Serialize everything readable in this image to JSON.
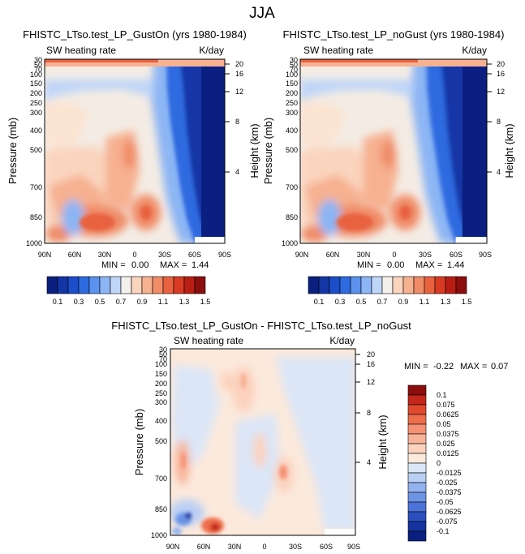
{
  "page_title": "JJA",
  "chart_data": [
    {
      "type": "heatmap",
      "title": "FHISTC_LTso.test_LP_GustOn (yrs 1980-1984)",
      "left_label": "SW heating rate",
      "right_label": "K/day",
      "ylabel": "Pressure (mb)",
      "ylabel_right": "Height (km)",
      "x_ticks": [
        "90N",
        "60N",
        "30N",
        "0",
        "30S",
        "60S",
        "90S"
      ],
      "y_ticks": [
        "30",
        "50",
        "70",
        "100",
        "150",
        "200",
        "250",
        "300",
        "400",
        "500",
        "700",
        "850",
        "1000"
      ],
      "y_ticks_right": [
        "20",
        "16",
        "12",
        "8",
        "4"
      ],
      "stats": {
        "min_label": "MIN =",
        "min": "0.00",
        "max_label": "MAX =",
        "max": "1.44"
      },
      "colorbar": {
        "labels": [
          "0.1",
          "0.3",
          "0.5",
          "0.7",
          "0.9",
          "1.1",
          "1.3",
          "1.5"
        ],
        "colors": [
          "#0a1f80",
          "#1335a6",
          "#1c4ecb",
          "#2e6be0",
          "#5a92ee",
          "#8cb5f4",
          "#bfd6f8",
          "#f3f0ec",
          "#fad4bd",
          "#f6b191",
          "#f08c68",
          "#e8623f",
          "#d83a22",
          "#b81e14",
          "#8c0d0d"
        ]
      }
    },
    {
      "type": "heatmap",
      "title": "FHISTC_LTso.test_LP_noGust (yrs 1980-1984)",
      "left_label": "SW heating rate",
      "right_label": "K/day",
      "ylabel": "Pressure (mb)",
      "ylabel_right": "Height (km)",
      "x_ticks": [
        "90N",
        "60N",
        "30N",
        "0",
        "30S",
        "60S",
        "90S"
      ],
      "y_ticks": [
        "30",
        "50",
        "70",
        "100",
        "150",
        "200",
        "250",
        "300",
        "400",
        "500",
        "700",
        "850",
        "1000"
      ],
      "y_ticks_right": [
        "20",
        "16",
        "12",
        "8",
        "4"
      ],
      "stats": {
        "min_label": "MIN =",
        "min": "0.00",
        "max_label": "MAX =",
        "max": "1.44"
      },
      "colorbar": {
        "labels": [
          "0.1",
          "0.3",
          "0.5",
          "0.7",
          "0.9",
          "1.1",
          "1.3",
          "1.5"
        ],
        "colors": [
          "#0a1f80",
          "#1335a6",
          "#1c4ecb",
          "#2e6be0",
          "#5a92ee",
          "#8cb5f4",
          "#bfd6f8",
          "#f3f0ec",
          "#fad4bd",
          "#f6b191",
          "#f08c68",
          "#e8623f",
          "#d83a22",
          "#b81e14",
          "#8c0d0d"
        ]
      }
    },
    {
      "type": "heatmap",
      "title": "FHISTC_LTso.test_LP_GustOn - FHISTC_LTso.test_LP_noGust",
      "left_label": "SW heating rate",
      "right_label": "K/day",
      "ylabel": "Pressure (mb)",
      "ylabel_right": "Height (km)",
      "x_ticks": [
        "90N",
        "60N",
        "30N",
        "0",
        "30S",
        "60S",
        "90S"
      ],
      "y_ticks": [
        "30",
        "50",
        "70",
        "100",
        "150",
        "200",
        "250",
        "300",
        "400",
        "500",
        "700",
        "850",
        "1000"
      ],
      "y_ticks_right": [
        "20",
        "16",
        "12",
        "8",
        "4"
      ],
      "stats": {
        "min_label": "MIN =",
        "min": "-0.22",
        "max_label": "MAX =",
        "max": "0.07"
      },
      "colorbar": {
        "labels": [
          "0.1",
          "0.075",
          "0.0625",
          "0.05",
          "0.0375",
          "0.025",
          "0.0125",
          "0",
          "-0.0125",
          "-0.025",
          "-0.0375",
          "-0.05",
          "-0.0625",
          "-0.075",
          "-0.1"
        ],
        "colors": [
          "#8c0d0d",
          "#c3261a",
          "#e0492d",
          "#ee6e4c",
          "#f59275",
          "#f8b398",
          "#fbd2bd",
          "#fbe9dc",
          "#dbe6f7",
          "#b9cff4",
          "#93b3ee",
          "#6d94e5",
          "#4b72d8",
          "#2c4fc0",
          "#15329f",
          "#0a1f80"
        ]
      }
    }
  ]
}
